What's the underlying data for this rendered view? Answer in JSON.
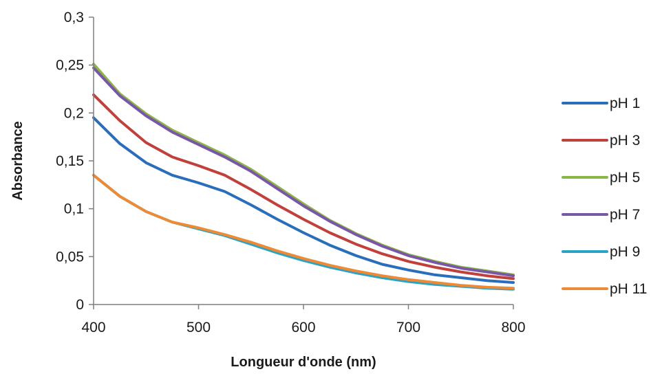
{
  "chart_data": {
    "type": "line",
    "title": "",
    "xlabel": "Longueur d'onde (nm)",
    "ylabel": "Absorbance",
    "xlim": [
      400,
      800
    ],
    "ylim": [
      0,
      0.3
    ],
    "xticks": [
      400,
      500,
      600,
      700,
      800
    ],
    "xtick_labels": [
      "400",
      "500",
      "600",
      "700",
      "800"
    ],
    "yticks": [
      0,
      0.05,
      0.1,
      0.15,
      0.2,
      0.25,
      0.3
    ],
    "ytick_labels": [
      "0",
      "0,05",
      "0,1",
      "0,15",
      "0,2",
      "0,25",
      "0,3"
    ],
    "grid": false,
    "legend_position": "right",
    "x": [
      400,
      425,
      450,
      475,
      500,
      525,
      550,
      575,
      600,
      625,
      650,
      675,
      700,
      725,
      750,
      775,
      800
    ],
    "series": [
      {
        "name": "pH 1",
        "color": "#2a6ebb",
        "values": [
          0.195,
          0.168,
          0.148,
          0.135,
          0.127,
          0.118,
          0.104,
          0.089,
          0.075,
          0.062,
          0.051,
          0.042,
          0.036,
          0.031,
          0.028,
          0.025,
          0.023
        ]
      },
      {
        "name": "pH 3",
        "color": "#c0413b",
        "values": [
          0.219,
          0.192,
          0.169,
          0.154,
          0.145,
          0.135,
          0.12,
          0.104,
          0.089,
          0.075,
          0.063,
          0.053,
          0.045,
          0.039,
          0.034,
          0.03,
          0.027
        ]
      },
      {
        "name": "pH 5",
        "color": "#8ab547",
        "values": [
          0.251,
          0.22,
          0.199,
          0.182,
          0.169,
          0.156,
          0.141,
          0.123,
          0.105,
          0.088,
          0.074,
          0.062,
          0.052,
          0.045,
          0.039,
          0.035,
          0.031
        ]
      },
      {
        "name": "pH 7",
        "color": "#7a57a6",
        "values": [
          0.247,
          0.218,
          0.197,
          0.18,
          0.167,
          0.154,
          0.139,
          0.121,
          0.103,
          0.087,
          0.073,
          0.061,
          0.051,
          0.044,
          0.038,
          0.034,
          0.03
        ]
      },
      {
        "name": "pH 9",
        "color": "#2aa3c4",
        "values": [
          0.135,
          0.113,
          0.097,
          0.086,
          0.079,
          0.072,
          0.063,
          0.054,
          0.046,
          0.039,
          0.033,
          0.028,
          0.024,
          0.021,
          0.019,
          0.017,
          0.016
        ]
      },
      {
        "name": "pH 11",
        "color": "#ec8a36",
        "values": [
          0.135,
          0.113,
          0.097,
          0.086,
          0.08,
          0.073,
          0.065,
          0.056,
          0.048,
          0.041,
          0.035,
          0.03,
          0.026,
          0.023,
          0.02,
          0.018,
          0.017
        ]
      }
    ]
  }
}
